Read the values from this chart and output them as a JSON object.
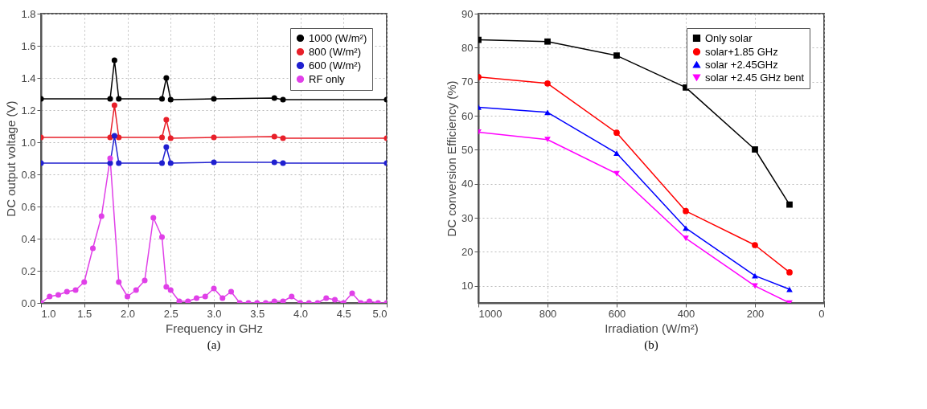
{
  "chart_data": [
    {
      "type": "line",
      "xlabel": "Frequency in GHz",
      "ylabel": "DC output voltage (V)",
      "annotations": [
        "(a)"
      ],
      "xlim": [
        1.0,
        5.0
      ],
      "xticks": [
        {
          "value": 1.0,
          "label": "1.0"
        },
        1.5,
        {
          "value": 2.0,
          "label": "2.0"
        },
        2.5,
        {
          "value": 3.0,
          "label": "3.0"
        },
        3.5,
        {
          "value": 4.0,
          "label": "4.0"
        },
        4.5,
        {
          "value": 5.0,
          "label": "5.0"
        }
      ],
      "ylim": [
        0,
        1.8
      ],
      "yticks": [
        {
          "value": 0,
          "label": "0.0"
        },
        0.2,
        0.4,
        0.6,
        0.8,
        {
          "value": 1.0,
          "label": "1.0"
        },
        1.2,
        1.4,
        1.6,
        1.8
      ],
      "grid": true,
      "legend": "top right",
      "marker": "circle",
      "line_style": "solid",
      "series": [
        {
          "name": "1000 (W/m²)",
          "color": "#000000",
          "x": [
            1.0,
            1.8,
            1.85,
            1.9,
            2.4,
            2.45,
            2.5,
            3.0,
            3.7,
            3.8,
            5.0
          ],
          "values": [
            1.27,
            1.27,
            1.51,
            1.27,
            1.27,
            1.4,
            1.265,
            1.27,
            1.275,
            1.265,
            1.265
          ]
        },
        {
          "name": "800 (W/m²)",
          "color": "#e8202a",
          "x": [
            1.0,
            1.8,
            1.85,
            1.9,
            2.4,
            2.45,
            2.5,
            3.0,
            3.7,
            3.8,
            5.0
          ],
          "values": [
            1.03,
            1.03,
            1.23,
            1.03,
            1.03,
            1.14,
            1.025,
            1.03,
            1.035,
            1.025,
            1.025
          ]
        },
        {
          "name": "600 (W/m²)",
          "color": "#2020d0",
          "x": [
            1.0,
            1.8,
            1.85,
            1.9,
            2.4,
            2.45,
            2.5,
            3.0,
            3.7,
            3.8,
            5.0
          ],
          "values": [
            0.87,
            0.87,
            1.04,
            0.87,
            0.87,
            0.97,
            0.87,
            0.875,
            0.875,
            0.87,
            0.87
          ]
        },
        {
          "name": "RF only",
          "color": "#e040e8",
          "x": [
            1.0,
            1.1,
            1.2,
            1.3,
            1.4,
            1.5,
            1.6,
            1.7,
            1.8,
            1.9,
            2.0,
            2.1,
            2.2,
            2.3,
            2.4,
            2.45,
            2.5,
            2.6,
            2.7,
            2.8,
            2.9,
            3.0,
            3.1,
            3.2,
            3.3,
            3.4,
            3.5,
            3.6,
            3.7,
            3.8,
            3.9,
            4.0,
            4.1,
            4.2,
            4.3,
            4.4,
            4.5,
            4.6,
            4.7,
            4.8,
            4.9,
            5.0
          ],
          "values": [
            0.0,
            0.04,
            0.05,
            0.07,
            0.08,
            0.13,
            0.34,
            0.54,
            0.9,
            0.13,
            0.04,
            0.08,
            0.14,
            0.53,
            0.41,
            0.1,
            0.08,
            0.01,
            0.01,
            0.03,
            0.04,
            0.09,
            0.03,
            0.07,
            0.0,
            0.0,
            0.0,
            0.0,
            0.01,
            0.01,
            0.04,
            0.0,
            0.0,
            0.0,
            0.03,
            0.02,
            0.0,
            0.06,
            0.0,
            0.01,
            0.0,
            0.0
          ]
        }
      ]
    },
    {
      "type": "line",
      "xlabel": "Irradiation (W/m²)",
      "ylabel": "DC conversion Efficiency (%)",
      "annotations": [
        "(b)"
      ],
      "xlim": [
        1000,
        0
      ],
      "xticks": [
        1000,
        800,
        600,
        400,
        200,
        0
      ],
      "ylim": [
        5,
        90
      ],
      "yticks": [
        10,
        20,
        30,
        40,
        50,
        60,
        70,
        80,
        90
      ],
      "grid": true,
      "legend": "top right",
      "line_style": "solid",
      "series": [
        {
          "name": "Only solar",
          "color": "#000000",
          "marker": "square",
          "x": [
            1000,
            800,
            600,
            400,
            200,
            100
          ],
          "values": [
            82.3,
            81.8,
            77.7,
            68.3,
            50.1,
            33.9
          ]
        },
        {
          "name": "solar+1.85 GHz",
          "color": "#ff0000",
          "marker": "circle",
          "x": [
            1000,
            800,
            600,
            400,
            200,
            100
          ],
          "values": [
            71.4,
            69.5,
            55.0,
            32.0,
            22.0,
            14.0
          ]
        },
        {
          "name": "solar +2.45GHz",
          "color": "#0000ff",
          "marker": "triangle",
          "x": [
            1000,
            800,
            600,
            400,
            200,
            100
          ],
          "values": [
            62.5,
            61.0,
            49.0,
            27.0,
            13.0,
            9.0
          ]
        },
        {
          "name": "solar +2.45 GHz bent",
          "color": "#ff00ff",
          "marker": "triangle-down",
          "x": [
            1000,
            800,
            600,
            400,
            200,
            100
          ],
          "values": [
            55.2,
            53.0,
            43.0,
            24.0,
            10.0,
            5.0
          ]
        }
      ]
    }
  ]
}
